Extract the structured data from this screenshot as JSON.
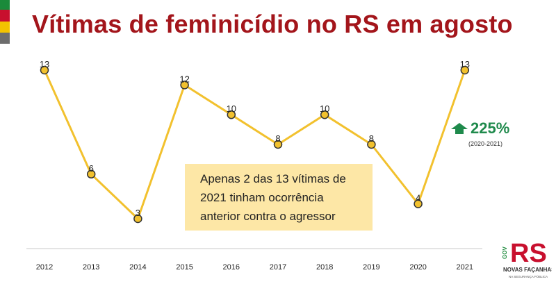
{
  "header": {
    "title": "Vítimas de feminicídio no RS em agosto"
  },
  "colors": {
    "title": "#a3151b",
    "line": "#f2c12e",
    "marker": "#f2c12e",
    "growth": "#1f8a4c",
    "flag_green": "#1a8a3a",
    "flag_red": "#c8102e",
    "flag_yellow": "#f3c300",
    "flag_gray": "#6d6d6d"
  },
  "chart_data": {
    "type": "line",
    "title": "Vítimas de feminicídio no RS em agosto",
    "xlabel": "",
    "ylabel": "",
    "categories": [
      "2012",
      "2013",
      "2014",
      "2015",
      "2016",
      "2017",
      "2018",
      "2019",
      "2020",
      "2021"
    ],
    "series": [
      {
        "values": [
          13,
          6,
          3,
          12,
          10,
          8,
          10,
          8,
          4,
          13
        ]
      }
    ],
    "ylim": [
      3,
      13
    ],
    "grid": false,
    "data_labels": true
  },
  "callout": {
    "lines": [
      "Apenas 2 das 13 vítimas de",
      "2021 tinham  ocorrência",
      "anterior contra o agressor"
    ]
  },
  "growth": {
    "icon": "arrow-up-icon",
    "percent": "225%",
    "range": "(2020-2021)"
  },
  "logo": {
    "letters": "RS",
    "side": "GOV",
    "tagline": "NOVAS FAÇANHAS",
    "sub": "NA SEGURANÇA PÚBLICA"
  }
}
